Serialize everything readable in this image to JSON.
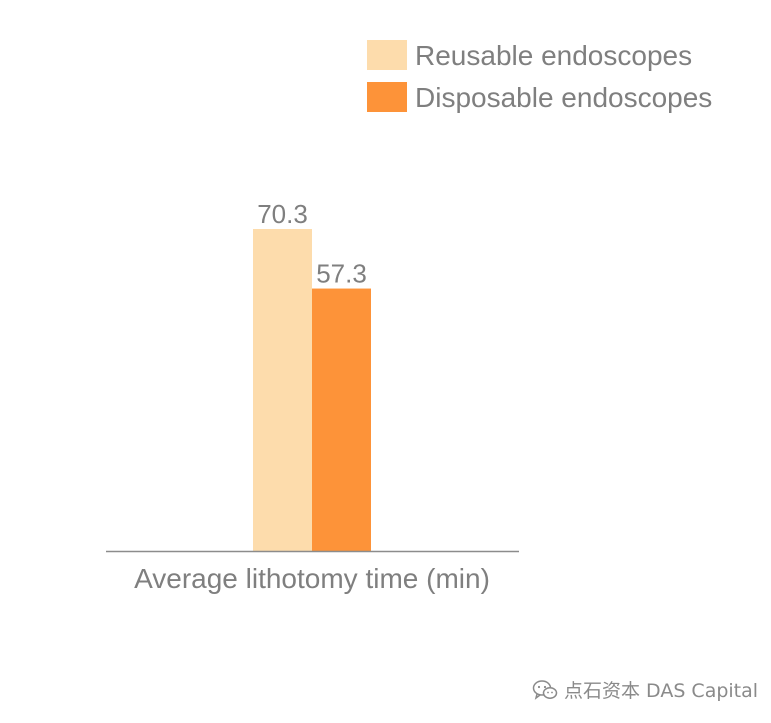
{
  "chart_data": {
    "type": "bar",
    "categories": [
      "Average lithotomy time (min)"
    ],
    "series": [
      {
        "name": "Reusable endoscopes",
        "values": [
          70.3
        ],
        "data_labels": [
          "70.3"
        ]
      },
      {
        "name": "Disposable endoscopes",
        "values": [
          57.3
        ],
        "data_labels": [
          "57.3"
        ]
      }
    ],
    "colors": [
      "#fddcac",
      "#fd9339"
    ],
    "ylim": [
      0,
      70.3
    ],
    "title": "",
    "xlabel": "",
    "ylabel": "",
    "grid": false,
    "legend_position": "top-right",
    "axis_color": "#8c8c8c"
  },
  "watermark": {
    "icon": "wechat-icon",
    "text": "点石资本 DAS Capital"
  }
}
